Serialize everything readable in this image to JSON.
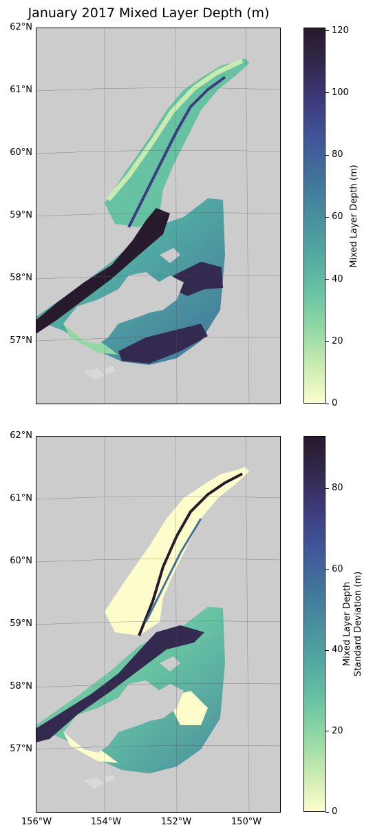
{
  "title": "January 2017 Mixed Layer Depth (m)",
  "colors": {
    "land": "#cccccc",
    "cmap": [
      "#fdfdcc",
      "#c9ebb1",
      "#91d8a3",
      "#66c2a3",
      "#51a8a2",
      "#488e9e",
      "#41739b",
      "#3f5799",
      "#3e3c7f",
      "#34294f",
      "#271a2c"
    ]
  },
  "lat_labels": [
    "62°N",
    "61°N",
    "60°N",
    "59°N",
    "58°N",
    "57°N"
  ],
  "lon_labels": [
    "156°W",
    "154°W",
    "152°W",
    "150°W"
  ],
  "panels": [
    {
      "colorbar_label": "Mixed Layer Depth (m)",
      "colorbar_ticks": [
        "0",
        "20",
        "40",
        "60",
        "80",
        "100",
        "120"
      ],
      "colorbar_max": 121
    },
    {
      "colorbar_label_line1": "Mixed Layer Depth",
      "colorbar_label_line2": "Standard Deviation (m)",
      "colorbar_ticks": [
        "0",
        "20",
        "40",
        "60",
        "80"
      ],
      "colorbar_max": 93
    }
  ]
}
